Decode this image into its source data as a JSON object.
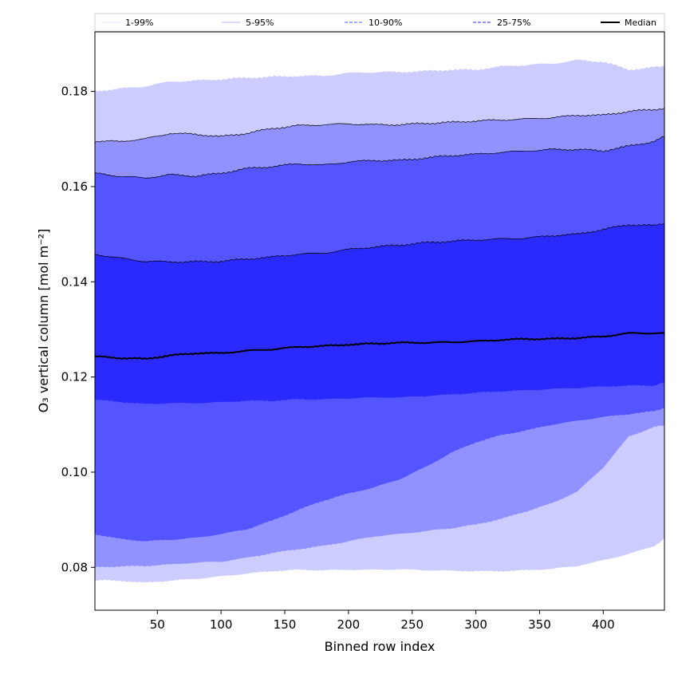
{
  "chart_data": {
    "type": "area",
    "title": "",
    "xlabel": "Binned row index",
    "ylabel": "O₃ vertical column [mol m⁻²]",
    "xlim": [
      1,
      448
    ],
    "ylim": [
      0.071,
      0.1925
    ],
    "xticks": [
      50,
      100,
      150,
      200,
      250,
      300,
      350,
      400
    ],
    "yticks": [
      0.08,
      0.1,
      0.12,
      0.14,
      0.16,
      0.18
    ],
    "ytick_labels": [
      "0.08",
      "0.10",
      "0.12",
      "0.14",
      "0.16",
      "0.18"
    ],
    "grid": false,
    "legend_position": "top, spanning full width",
    "x": [
      1,
      20,
      40,
      60,
      80,
      100,
      120,
      140,
      160,
      180,
      200,
      220,
      240,
      260,
      280,
      300,
      320,
      340,
      360,
      380,
      400,
      420,
      440,
      448
    ],
    "bands": [
      {
        "name": "1-99%",
        "color": "#ccccff",
        "edge_color": "#ccccff",
        "lower": [
          0.0773,
          0.0772,
          0.0768,
          0.0772,
          0.0776,
          0.0781,
          0.0787,
          0.0792,
          0.0795,
          0.0794,
          0.0795,
          0.0795,
          0.0796,
          0.0794,
          0.0793,
          0.0792,
          0.0792,
          0.0794,
          0.0797,
          0.0803,
          0.0815,
          0.0828,
          0.0845,
          0.086
        ],
        "upper": [
          0.18,
          0.1805,
          0.181,
          0.182,
          0.1822,
          0.1825,
          0.1828,
          0.183,
          0.1832,
          0.1832,
          0.1838,
          0.184,
          0.184,
          0.1842,
          0.1845,
          0.1845,
          0.1852,
          0.1855,
          0.1858,
          0.1865,
          0.1862,
          0.1845,
          0.185,
          0.1852
        ]
      },
      {
        "name": "5-95%",
        "color": "#9191ff",
        "edge_color": "#000000",
        "lower": [
          0.08,
          0.0802,
          0.0803,
          0.0806,
          0.081,
          0.0812,
          0.082,
          0.083,
          0.0838,
          0.0845,
          0.0855,
          0.0865,
          0.087,
          0.0876,
          0.0882,
          0.089,
          0.0902,
          0.0918,
          0.0935,
          0.096,
          0.101,
          0.1075,
          0.1095,
          0.1098
        ],
        "upper": [
          0.1695,
          0.1695,
          0.17,
          0.1712,
          0.171,
          0.1705,
          0.1712,
          0.1722,
          0.1728,
          0.173,
          0.1732,
          0.173,
          0.173,
          0.1733,
          0.1735,
          0.1738,
          0.174,
          0.1742,
          0.1745,
          0.175,
          0.175,
          0.1758,
          0.1762,
          0.1765
        ]
      },
      {
        "name": "10-90%",
        "color": "#5555ff",
        "edge_color": "#000000",
        "lower": [
          0.087,
          0.086,
          0.0855,
          0.0858,
          0.0862,
          0.087,
          0.088,
          0.0898,
          0.092,
          0.094,
          0.0955,
          0.0968,
          0.0985,
          0.101,
          0.104,
          0.1063,
          0.1078,
          0.1088,
          0.11,
          0.1108,
          0.1116,
          0.1122,
          0.1128,
          0.1135
        ],
        "upper": [
          0.1628,
          0.1622,
          0.1618,
          0.1625,
          0.1622,
          0.1628,
          0.1638,
          0.1642,
          0.1648,
          0.1645,
          0.1652,
          0.1655,
          0.1655,
          0.166,
          0.1665,
          0.1668,
          0.1672,
          0.1675,
          0.1678,
          0.1678,
          0.1675,
          0.1685,
          0.1695,
          0.1705
        ]
      },
      {
        "name": "25-75%",
        "color": "#2a2aff",
        "edge_color": "#000000",
        "lower": [
          0.1152,
          0.1148,
          0.1143,
          0.1145,
          0.1145,
          0.1147,
          0.115,
          0.115,
          0.1153,
          0.1153,
          0.1155,
          0.1157,
          0.1157,
          0.116,
          0.1163,
          0.1167,
          0.117,
          0.1172,
          0.1175,
          0.1177,
          0.118,
          0.1182,
          0.1182,
          0.119
        ],
        "upper": [
          0.1458,
          0.145,
          0.1443,
          0.1442,
          0.1442,
          0.1443,
          0.1448,
          0.1452,
          0.1458,
          0.146,
          0.1468,
          0.1473,
          0.1477,
          0.1482,
          0.1485,
          0.1488,
          0.149,
          0.1492,
          0.1497,
          0.15,
          0.151,
          0.152,
          0.1518,
          0.1523
        ]
      }
    ],
    "median": {
      "name": "Median",
      "color": "#000000",
      "values": [
        0.1243,
        0.124,
        0.1238,
        0.1245,
        0.125,
        0.125,
        0.1255,
        0.1258,
        0.1263,
        0.1265,
        0.1268,
        0.127,
        0.1272,
        0.1272,
        0.1273,
        0.1275,
        0.1278,
        0.128,
        0.128,
        0.1282,
        0.1285,
        0.1292,
        0.1292,
        0.1292
      ]
    },
    "legend": [
      {
        "label": "1-99%",
        "color": "#d8d8ff",
        "style": "dotted-thin"
      },
      {
        "label": "5-95%",
        "color": "#9c9cff",
        "style": "thin"
      },
      {
        "label": "10-90%",
        "color": "#7b7bff",
        "style": "dashed"
      },
      {
        "label": "25-75%",
        "color": "#5050ff",
        "style": "dashed"
      },
      {
        "label": "Median",
        "color": "#000000",
        "style": "solid-thick"
      }
    ]
  }
}
